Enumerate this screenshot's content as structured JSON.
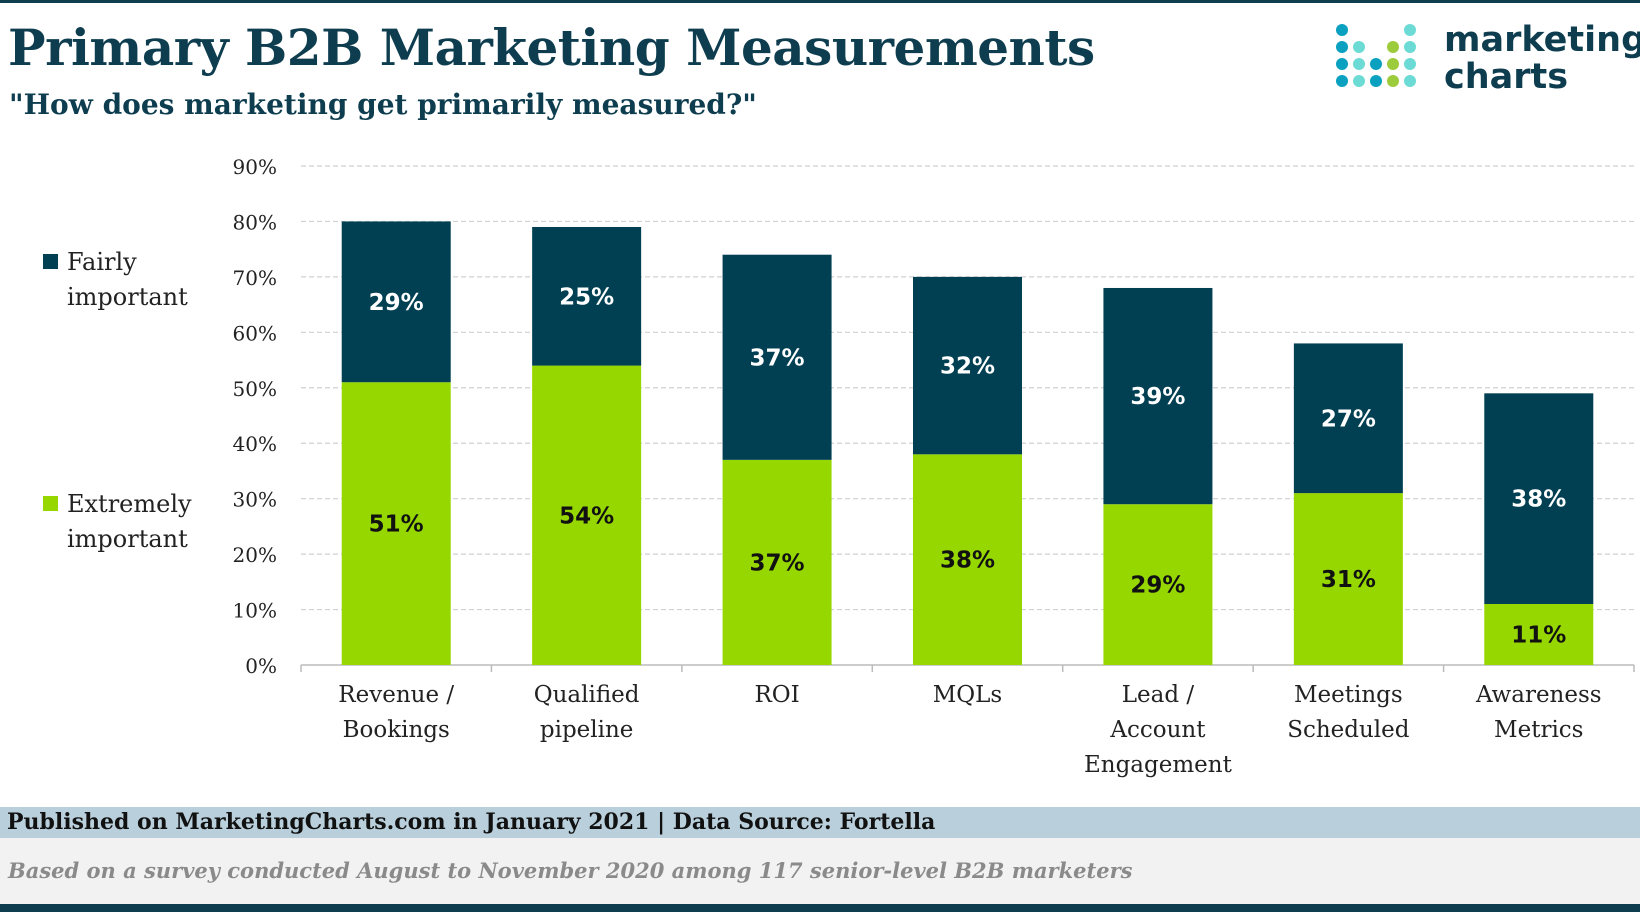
{
  "header": {
    "title": "Primary B2B Marketing Measurements",
    "subtitle": "\"How does marketing get primarily measured?\""
  },
  "logo": {
    "line1": "marketing",
    "line2": "charts"
  },
  "footer": {
    "published": "Published on MarketingCharts.com in January 2021 | Data Source: Fortella",
    "note": "Based on a survey conducted August to November 2020 among 117 senior-level B2B marketers"
  },
  "colors": {
    "fairly": "#013f52",
    "extremely": "#97d700",
    "title": "#0d3d4f"
  },
  "chart_data": {
    "type": "bar",
    "stacked": true,
    "categories": [
      [
        "Revenue /",
        "Bookings"
      ],
      [
        "Qualified",
        "pipeline"
      ],
      [
        "ROI"
      ],
      [
        "MQLs"
      ],
      [
        "Lead /",
        "Account",
        "Engagement"
      ],
      [
        "Meetings",
        "Scheduled"
      ],
      [
        "Awareness",
        "Metrics"
      ]
    ],
    "series": [
      {
        "name": "Extremely important",
        "legend_lines": [
          "Extremely",
          "important"
        ],
        "values": [
          51,
          54,
          37,
          38,
          29,
          31,
          11
        ],
        "color": "#97d700"
      },
      {
        "name": "Fairly important",
        "legend_lines": [
          "Fairly",
          "important"
        ],
        "values": [
          29,
          25,
          37,
          32,
          39,
          27,
          38
        ],
        "color": "#013f52"
      }
    ],
    "ylim": [
      0,
      90
    ],
    "yticks": [
      "0%",
      "10%",
      "20%",
      "30%",
      "40%",
      "50%",
      "60%",
      "70%",
      "80%",
      "90%"
    ],
    "grid": true,
    "legend_position": "left",
    "xlabel": "",
    "ylabel": ""
  }
}
